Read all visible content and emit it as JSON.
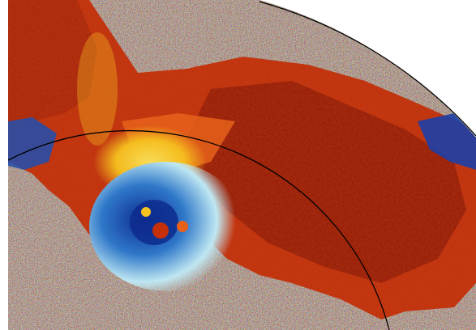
{
  "image": {
    "description_type": "doppler-radar-velocity-sector",
    "colors": {
      "background": "#ffffff",
      "outbound_dark": "#8a1606",
      "outbound": "#c5300b",
      "outbound_light": "#e8611a",
      "transition": "#f6c21f",
      "inbound_light": "#bfe7f2",
      "inbound": "#2f78c9",
      "inbound_dark": "#0d2c8e",
      "range_ring": "#000000"
    },
    "range_rings": 2
  }
}
